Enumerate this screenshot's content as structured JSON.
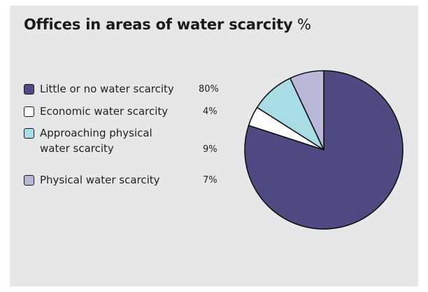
{
  "title": "Offices in areas of water scarcity",
  "unit": "%",
  "chart_data": {
    "type": "pie",
    "title": "Offices in areas of water scarcity",
    "unit": "%",
    "start_angle_deg": 0,
    "direction": "clockwise",
    "slices": [
      {
        "label": "Little or no water scarcity",
        "value": 80,
        "value_label": "80%",
        "color": "#4f4b82"
      },
      {
        "label": "Economic water scarcity",
        "value": 4,
        "value_label": "4%",
        "color": "#ffffff"
      },
      {
        "label": "Approaching physical water scarcity",
        "label_line1": "Approaching physical",
        "label_line2": "water scarcity",
        "value": 9,
        "value_label": "9%",
        "color": "#a8dde6"
      },
      {
        "label": "Physical water scarcity",
        "value": 7,
        "value_label": "7%",
        "color": "#b9b8d8"
      }
    ],
    "legend_position": "left"
  }
}
